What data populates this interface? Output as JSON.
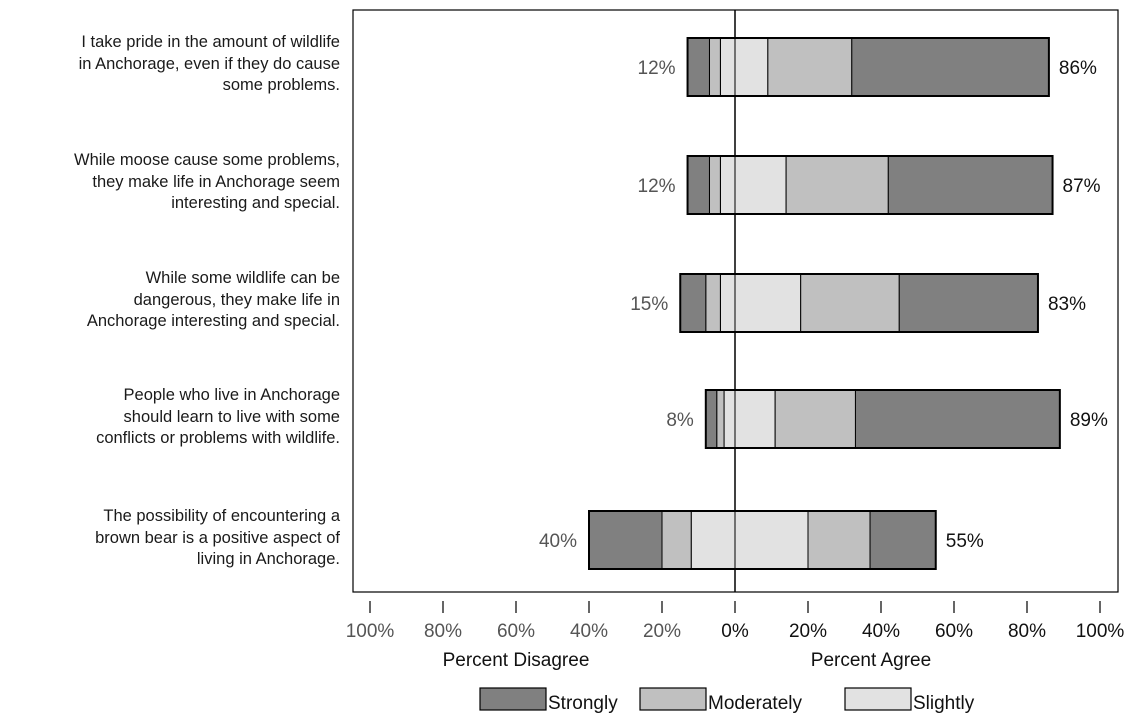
{
  "chart_data": {
    "type": "bar",
    "stacked": true,
    "orientation": "horizontal",
    "diverging": true,
    "categories": [
      [
        "I take pride in the amount of wildlife",
        "in Anchorage, even if they do cause",
        "some problems."
      ],
      [
        "While moose cause some problems,",
        "they make life in Anchorage seem",
        "interesting and special."
      ],
      [
        "While some wildlife can be",
        "dangerous, they make life in",
        "Anchorage interesting and special."
      ],
      [
        "People who live in Anchorage",
        "should learn to live with some",
        "conflicts or problems with wildlife."
      ],
      [
        "The possibility of encountering a",
        "brown bear is a positive aspect of",
        "living in Anchorage."
      ]
    ],
    "disagree_series": [
      {
        "name": "Strongly",
        "values": [
          6,
          6,
          7,
          3,
          20
        ]
      },
      {
        "name": "Moderately",
        "values": [
          3,
          3,
          4,
          2,
          8
        ]
      },
      {
        "name": "Slightly",
        "values": [
          4,
          4,
          4,
          3,
          12
        ]
      }
    ],
    "agree_series": [
      {
        "name": "Slightly",
        "values": [
          9,
          14,
          18,
          11,
          20
        ]
      },
      {
        "name": "Moderately",
        "values": [
          23,
          28,
          27,
          22,
          17
        ]
      },
      {
        "name": "Strongly",
        "values": [
          54,
          45,
          38,
          56,
          18
        ]
      }
    ],
    "disagree_totals": [
      "12%",
      "12%",
      "15%",
      "8%",
      "40%"
    ],
    "agree_totals": [
      "86%",
      "87%",
      "83%",
      "89%",
      "55%"
    ],
    "xlim": [
      -100,
      100
    ],
    "x_ticks": [
      "100%",
      "80%",
      "60%",
      "40%",
      "20%",
      "0%",
      "20%",
      "40%",
      "60%",
      "80%",
      "100%"
    ],
    "xlabel_left": "Percent Disagree",
    "xlabel_right": "Percent Agree",
    "legend": [
      {
        "name": "Strongly",
        "color": "#808080"
      },
      {
        "name": "Moderately",
        "color": "#c0c0c0"
      },
      {
        "name": "Slightly",
        "color": "#e2e2e2"
      }
    ],
    "legend_position": "bottom",
    "colors": {
      "Strongly": "#808080",
      "Moderately": "#c0c0c0",
      "Slightly": "#e2e2e2"
    },
    "total_label_colors": {
      "disagree": "#555555",
      "agree": "#111111"
    },
    "grid": false
  }
}
